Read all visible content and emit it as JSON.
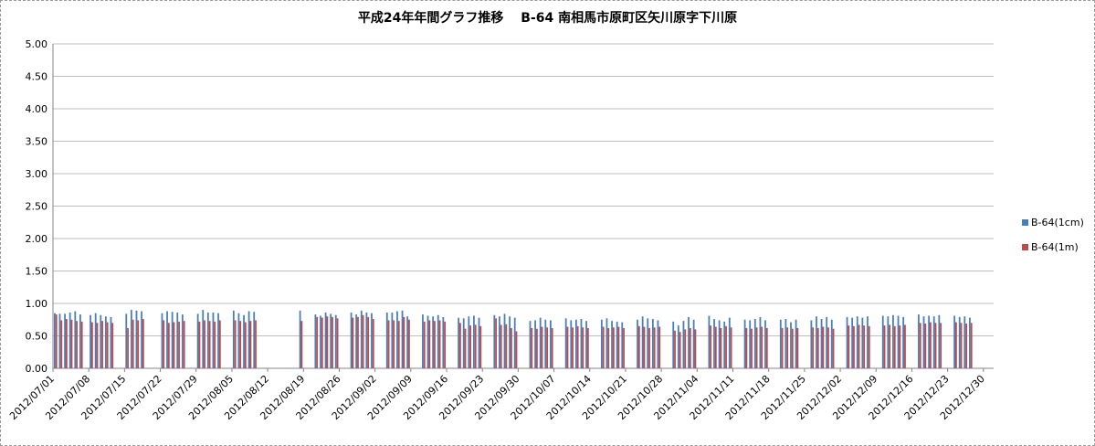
{
  "chart_data": {
    "type": "bar",
    "title": "平成24年年間グラフ推移　 B-64 南相馬市原町区矢川原字下川原",
    "xlabel": "",
    "ylabel": "",
    "ylim": [
      0,
      5
    ],
    "yticks": [
      "5.00",
      "4.50",
      "4.00",
      "3.50",
      "3.00",
      "2.50",
      "2.00",
      "1.50",
      "1.00",
      "0.50",
      "0.00"
    ],
    "x_range": [
      "2012/07/01",
      "2012/12/31"
    ],
    "xticks": [
      "2012/07/01",
      "2012/07/08",
      "2012/07/15",
      "2012/07/22",
      "2012/07/29",
      "2012/08/05",
      "2012/08/12",
      "2012/08/19",
      "2012/08/26",
      "2012/09/02",
      "2012/09/09",
      "2012/09/16",
      "2012/09/23",
      "2012/09/30",
      "2012/10/07",
      "2012/10/14",
      "2012/10/21",
      "2012/10/28",
      "2012/11/04",
      "2012/11/11",
      "2012/11/18",
      "2012/11/25",
      "2012/12/02",
      "2012/12/09",
      "2012/12/16",
      "2012/12/23",
      "2012/12/30"
    ],
    "grid": true,
    "legend_position": "right",
    "series": [
      {
        "name": "B-64(1cm)",
        "color": "#4a7ebb",
        "points": [
          [
            "2012/07/01",
            0.85
          ],
          [
            "2012/07/02",
            0.84
          ],
          [
            "2012/07/03",
            0.84
          ],
          [
            "2012/07/04",
            0.86
          ],
          [
            "2012/07/05",
            0.88
          ],
          [
            "2012/07/06",
            0.83
          ],
          [
            "2012/07/08",
            0.82
          ],
          [
            "2012/07/09",
            0.85
          ],
          [
            "2012/07/10",
            0.82
          ],
          [
            "2012/07/11",
            0.8
          ],
          [
            "2012/07/12",
            0.79
          ],
          [
            "2012/07/15",
            0.84
          ],
          [
            "2012/07/16",
            0.9
          ],
          [
            "2012/07/17",
            0.89
          ],
          [
            "2012/07/18",
            0.88
          ],
          [
            "2012/07/22",
            0.85
          ],
          [
            "2012/07/23",
            0.88
          ],
          [
            "2012/07/24",
            0.87
          ],
          [
            "2012/07/25",
            0.86
          ],
          [
            "2012/07/26",
            0.83
          ],
          [
            "2012/07/29",
            0.84
          ],
          [
            "2012/07/30",
            0.9
          ],
          [
            "2012/07/31",
            0.86
          ],
          [
            "2012/08/01",
            0.86
          ],
          [
            "2012/08/02",
            0.85
          ],
          [
            "2012/08/05",
            0.89
          ],
          [
            "2012/08/06",
            0.85
          ],
          [
            "2012/08/07",
            0.82
          ],
          [
            "2012/08/08",
            0.88
          ],
          [
            "2012/08/09",
            0.87
          ],
          [
            "2012/08/18",
            0.89
          ],
          [
            "2012/08/21",
            0.83
          ],
          [
            "2012/08/22",
            0.81
          ],
          [
            "2012/08/23",
            0.86
          ],
          [
            "2012/08/24",
            0.84
          ],
          [
            "2012/08/25",
            0.82
          ],
          [
            "2012/08/28",
            0.86
          ],
          [
            "2012/08/29",
            0.83
          ],
          [
            "2012/08/30",
            0.89
          ],
          [
            "2012/08/31",
            0.86
          ],
          [
            "2012/09/01",
            0.85
          ],
          [
            "2012/09/04",
            0.86
          ],
          [
            "2012/09/05",
            0.86
          ],
          [
            "2012/09/06",
            0.88
          ],
          [
            "2012/09/07",
            0.89
          ],
          [
            "2012/09/08",
            0.8
          ],
          [
            "2012/09/11",
            0.83
          ],
          [
            "2012/09/12",
            0.81
          ],
          [
            "2012/09/13",
            0.8
          ],
          [
            "2012/09/14",
            0.82
          ],
          [
            "2012/09/15",
            0.79
          ],
          [
            "2012/09/18",
            0.78
          ],
          [
            "2012/09/19",
            0.77
          ],
          [
            "2012/09/20",
            0.8
          ],
          [
            "2012/09/21",
            0.81
          ],
          [
            "2012/09/22",
            0.78
          ],
          [
            "2012/09/25",
            0.82
          ],
          [
            "2012/09/26",
            0.8
          ],
          [
            "2012/09/27",
            0.84
          ],
          [
            "2012/09/28",
            0.8
          ],
          [
            "2012/09/29",
            0.78
          ],
          [
            "2012/10/02",
            0.73
          ],
          [
            "2012/10/03",
            0.74
          ],
          [
            "2012/10/04",
            0.78
          ],
          [
            "2012/10/05",
            0.75
          ],
          [
            "2012/10/06",
            0.74
          ],
          [
            "2012/10/09",
            0.77
          ],
          [
            "2012/10/10",
            0.74
          ],
          [
            "2012/10/11",
            0.75
          ],
          [
            "2012/10/12",
            0.76
          ],
          [
            "2012/10/13",
            0.73
          ],
          [
            "2012/10/16",
            0.75
          ],
          [
            "2012/10/17",
            0.77
          ],
          [
            "2012/10/18",
            0.73
          ],
          [
            "2012/10/19",
            0.72
          ],
          [
            "2012/10/20",
            0.71
          ],
          [
            "2012/10/23",
            0.75
          ],
          [
            "2012/10/24",
            0.8
          ],
          [
            "2012/10/25",
            0.77
          ],
          [
            "2012/10/26",
            0.76
          ],
          [
            "2012/10/27",
            0.74
          ],
          [
            "2012/10/30",
            0.72
          ],
          [
            "2012/10/31",
            0.66
          ],
          [
            "2012/11/01",
            0.73
          ],
          [
            "2012/11/02",
            0.79
          ],
          [
            "2012/11/03",
            0.75
          ],
          [
            "2012/11/06",
            0.81
          ],
          [
            "2012/11/07",
            0.76
          ],
          [
            "2012/11/08",
            0.74
          ],
          [
            "2012/11/09",
            0.72
          ],
          [
            "2012/11/10",
            0.78
          ],
          [
            "2012/11/13",
            0.75
          ],
          [
            "2012/11/14",
            0.74
          ],
          [
            "2012/11/15",
            0.76
          ],
          [
            "2012/11/16",
            0.79
          ],
          [
            "2012/11/17",
            0.74
          ],
          [
            "2012/11/20",
            0.75
          ],
          [
            "2012/11/21",
            0.76
          ],
          [
            "2012/11/22",
            0.71
          ],
          [
            "2012/11/23",
            0.75
          ],
          [
            "2012/11/26",
            0.74
          ],
          [
            "2012/11/27",
            0.8
          ],
          [
            "2012/11/28",
            0.76
          ],
          [
            "2012/11/29",
            0.79
          ],
          [
            "2012/11/30",
            0.75
          ],
          [
            "2012/12/03",
            0.79
          ],
          [
            "2012/12/04",
            0.78
          ],
          [
            "2012/12/05",
            0.8
          ],
          [
            "2012/12/06",
            0.78
          ],
          [
            "2012/12/07",
            0.8
          ],
          [
            "2012/12/10",
            0.81
          ],
          [
            "2012/12/11",
            0.8
          ],
          [
            "2012/12/12",
            0.82
          ],
          [
            "2012/12/13",
            0.81
          ],
          [
            "2012/12/14",
            0.79
          ],
          [
            "2012/12/17",
            0.83
          ],
          [
            "2012/12/18",
            0.8
          ],
          [
            "2012/12/19",
            0.81
          ],
          [
            "2012/12/20",
            0.8
          ],
          [
            "2012/12/21",
            0.82
          ],
          [
            "2012/12/24",
            0.81
          ],
          [
            "2012/12/25",
            0.79
          ],
          [
            "2012/12/26",
            0.8
          ],
          [
            "2012/12/27",
            0.78
          ]
        ]
      },
      {
        "name": "B-64(1m)",
        "color": "#be4b48",
        "points": [
          [
            "2012/07/01",
            0.83
          ],
          [
            "2012/07/02",
            0.74
          ],
          [
            "2012/07/03",
            0.76
          ],
          [
            "2012/07/04",
            0.75
          ],
          [
            "2012/07/05",
            0.73
          ],
          [
            "2012/07/06",
            0.72
          ],
          [
            "2012/07/08",
            0.71
          ],
          [
            "2012/07/09",
            0.7
          ],
          [
            "2012/07/10",
            0.73
          ],
          [
            "2012/07/11",
            0.71
          ],
          [
            "2012/07/12",
            0.7
          ],
          [
            "2012/07/15",
            0.62
          ],
          [
            "2012/07/16",
            0.75
          ],
          [
            "2012/07/17",
            0.74
          ],
          [
            "2012/07/18",
            0.76
          ],
          [
            "2012/07/22",
            0.74
          ],
          [
            "2012/07/23",
            0.7
          ],
          [
            "2012/07/24",
            0.71
          ],
          [
            "2012/07/25",
            0.72
          ],
          [
            "2012/07/26",
            0.73
          ],
          [
            "2012/07/29",
            0.72
          ],
          [
            "2012/07/30",
            0.74
          ],
          [
            "2012/07/31",
            0.73
          ],
          [
            "2012/08/01",
            0.72
          ],
          [
            "2012/08/02",
            0.74
          ],
          [
            "2012/08/05",
            0.74
          ],
          [
            "2012/08/06",
            0.73
          ],
          [
            "2012/08/07",
            0.71
          ],
          [
            "2012/08/08",
            0.73
          ],
          [
            "2012/08/09",
            0.74
          ],
          [
            "2012/08/18",
            0.73
          ],
          [
            "2012/08/21",
            0.79
          ],
          [
            "2012/08/22",
            0.78
          ],
          [
            "2012/08/23",
            0.8
          ],
          [
            "2012/08/24",
            0.79
          ],
          [
            "2012/08/25",
            0.77
          ],
          [
            "2012/08/28",
            0.78
          ],
          [
            "2012/08/29",
            0.79
          ],
          [
            "2012/08/30",
            0.82
          ],
          [
            "2012/08/31",
            0.79
          ],
          [
            "2012/09/01",
            0.76
          ],
          [
            "2012/09/04",
            0.74
          ],
          [
            "2012/09/05",
            0.74
          ],
          [
            "2012/09/06",
            0.73
          ],
          [
            "2012/09/07",
            0.79
          ],
          [
            "2012/09/08",
            0.75
          ],
          [
            "2012/09/11",
            0.72
          ],
          [
            "2012/09/12",
            0.74
          ],
          [
            "2012/09/13",
            0.73
          ],
          [
            "2012/09/14",
            0.74
          ],
          [
            "2012/09/15",
            0.72
          ],
          [
            "2012/09/18",
            0.7
          ],
          [
            "2012/09/19",
            0.61
          ],
          [
            "2012/09/20",
            0.66
          ],
          [
            "2012/09/21",
            0.67
          ],
          [
            "2012/09/22",
            0.65
          ],
          [
            "2012/09/25",
            0.77
          ],
          [
            "2012/09/26",
            0.67
          ],
          [
            "2012/09/27",
            0.68
          ],
          [
            "2012/09/28",
            0.62
          ],
          [
            "2012/09/29",
            0.57
          ],
          [
            "2012/10/02",
            0.62
          ],
          [
            "2012/10/03",
            0.61
          ],
          [
            "2012/10/04",
            0.64
          ],
          [
            "2012/10/05",
            0.63
          ],
          [
            "2012/10/06",
            0.62
          ],
          [
            "2012/10/09",
            0.64
          ],
          [
            "2012/10/10",
            0.63
          ],
          [
            "2012/10/11",
            0.65
          ],
          [
            "2012/10/12",
            0.63
          ],
          [
            "2012/10/13",
            0.62
          ],
          [
            "2012/10/16",
            0.64
          ],
          [
            "2012/10/17",
            0.62
          ],
          [
            "2012/10/18",
            0.63
          ],
          [
            "2012/10/19",
            0.64
          ],
          [
            "2012/10/20",
            0.62
          ],
          [
            "2012/10/23",
            0.65
          ],
          [
            "2012/10/24",
            0.64
          ],
          [
            "2012/10/25",
            0.62
          ],
          [
            "2012/10/26",
            0.63
          ],
          [
            "2012/10/27",
            0.64
          ],
          [
            "2012/10/30",
            0.58
          ],
          [
            "2012/10/31",
            0.56
          ],
          [
            "2012/11/01",
            0.6
          ],
          [
            "2012/11/02",
            0.62
          ],
          [
            "2012/11/03",
            0.6
          ],
          [
            "2012/11/06",
            0.66
          ],
          [
            "2012/11/07",
            0.64
          ],
          [
            "2012/11/08",
            0.62
          ],
          [
            "2012/11/09",
            0.65
          ],
          [
            "2012/11/10",
            0.63
          ],
          [
            "2012/11/13",
            0.62
          ],
          [
            "2012/11/14",
            0.61
          ],
          [
            "2012/11/15",
            0.63
          ],
          [
            "2012/11/16",
            0.64
          ],
          [
            "2012/11/17",
            0.62
          ],
          [
            "2012/11/20",
            0.62
          ],
          [
            "2012/11/21",
            0.63
          ],
          [
            "2012/11/22",
            0.61
          ],
          [
            "2012/11/23",
            0.62
          ],
          [
            "2012/11/26",
            0.63
          ],
          [
            "2012/11/27",
            0.62
          ],
          [
            "2012/11/28",
            0.64
          ],
          [
            "2012/11/29",
            0.63
          ],
          [
            "2012/11/30",
            0.61
          ],
          [
            "2012/12/03",
            0.66
          ],
          [
            "2012/12/04",
            0.65
          ],
          [
            "2012/12/05",
            0.67
          ],
          [
            "2012/12/06",
            0.66
          ],
          [
            "2012/12/07",
            0.65
          ],
          [
            "2012/12/10",
            0.66
          ],
          [
            "2012/12/11",
            0.67
          ],
          [
            "2012/12/12",
            0.65
          ],
          [
            "2012/12/13",
            0.66
          ],
          [
            "2012/12/14",
            0.67
          ],
          [
            "2012/12/17",
            0.7
          ],
          [
            "2012/12/18",
            0.69
          ],
          [
            "2012/12/19",
            0.71
          ],
          [
            "2012/12/20",
            0.7
          ],
          [
            "2012/12/21",
            0.7
          ],
          [
            "2012/12/24",
            0.71
          ],
          [
            "2012/12/25",
            0.7
          ],
          [
            "2012/12/26",
            0.69
          ],
          [
            "2012/12/27",
            0.7
          ]
        ]
      }
    ]
  }
}
